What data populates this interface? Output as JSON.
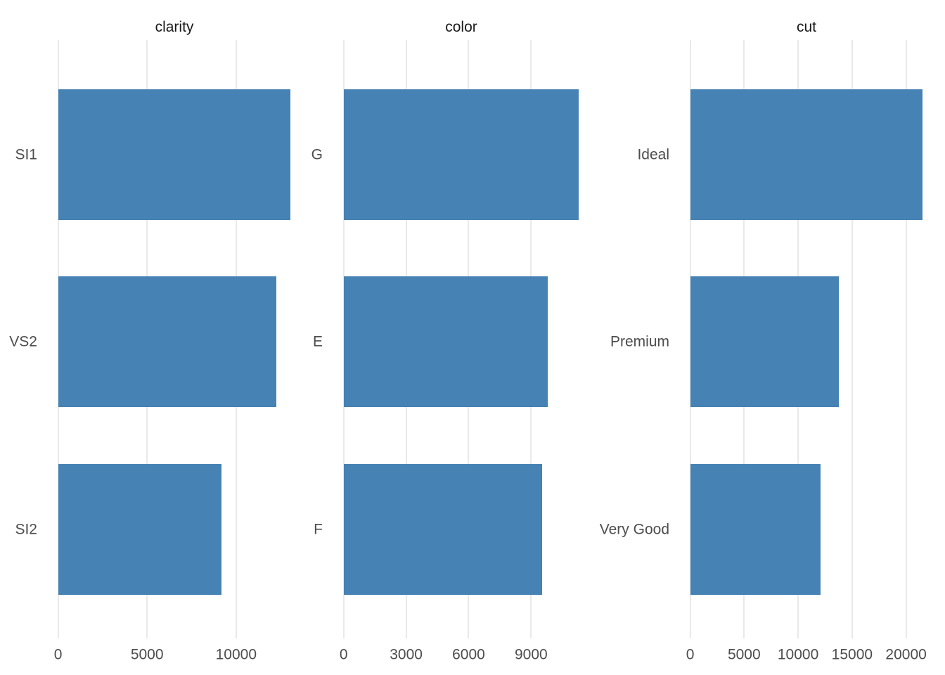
{
  "figure": {
    "background": "#FFFFFF",
    "bar_color": "#4682B4",
    "gridline_color": "#E9E9E9",
    "axis_text_color": "#4D4D4D",
    "title_color": "#1A1A1A"
  },
  "chart_data": [
    {
      "type": "bar",
      "orientation": "horizontal",
      "title": "clarity",
      "categories": [
        "SI1",
        "VS2",
        "SI2"
      ],
      "values": [
        13065,
        12258,
        9194
      ],
      "x_ticks": [
        0,
        5000,
        10000
      ],
      "tick_labels": [
        "0",
        "5000",
        "10000"
      ],
      "xlim": [
        -653,
        13718
      ],
      "grid": "major-vertical-only",
      "legend": "none",
      "xlabel": "",
      "ylabel": ""
    },
    {
      "type": "bar",
      "orientation": "horizontal",
      "title": "color",
      "categories": [
        "G",
        "E",
        "F"
      ],
      "values": [
        11292,
        9797,
        9542
      ],
      "x_ticks": [
        0,
        3000,
        6000,
        9000
      ],
      "tick_labels": [
        "0",
        "3000",
        "6000",
        "9000"
      ],
      "xlim": [
        -565,
        11857
      ],
      "grid": "major-vertical-only",
      "legend": "none",
      "xlabel": "",
      "ylabel": ""
    },
    {
      "type": "bar",
      "orientation": "horizontal",
      "title": "cut",
      "categories": [
        "Ideal",
        "Premium",
        "Very Good"
      ],
      "values": [
        21551,
        13791,
        12082
      ],
      "x_ticks": [
        0,
        5000,
        10000,
        15000,
        20000
      ],
      "tick_labels": [
        "0",
        "5000",
        "10000",
        "15000",
        "20000"
      ],
      "xlim": [
        -1078,
        22629
      ],
      "grid": "major-vertical-only",
      "legend": "none",
      "xlabel": "",
      "ylabel": ""
    }
  ]
}
